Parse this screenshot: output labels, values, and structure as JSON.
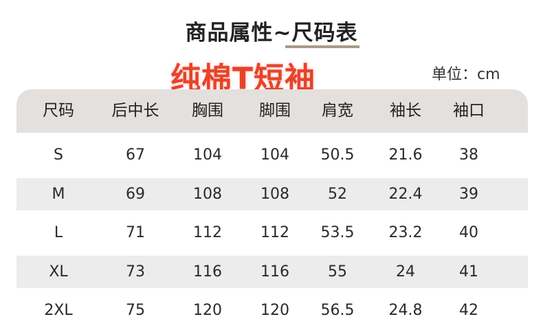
{
  "title": "商品属性~尺码表",
  "subtitle": "纯棉T短袖",
  "unit": "单位：cm",
  "colors": {
    "accent_red": "#e8432a",
    "header_bg": "#e3e0dd",
    "stripe_bg": "#ececec",
    "underline": "#a89a88"
  },
  "table": {
    "headers": [
      "尺码",
      "后中长",
      "胸围",
      "脚围",
      "肩宽",
      "袖长",
      "袖口"
    ],
    "rows": [
      [
        "S",
        "67",
        "104",
        "104",
        "50.5",
        "21.6",
        "38"
      ],
      [
        "M",
        "69",
        "108",
        "108",
        "52",
        "22.4",
        "39"
      ],
      [
        "L",
        "71",
        "112",
        "112",
        "53.5",
        "23.2",
        "40"
      ],
      [
        "XL",
        "73",
        "116",
        "116",
        "55",
        "24",
        "41"
      ],
      [
        "2XL",
        "75",
        "120",
        "120",
        "56.5",
        "24.8",
        "42"
      ]
    ]
  }
}
